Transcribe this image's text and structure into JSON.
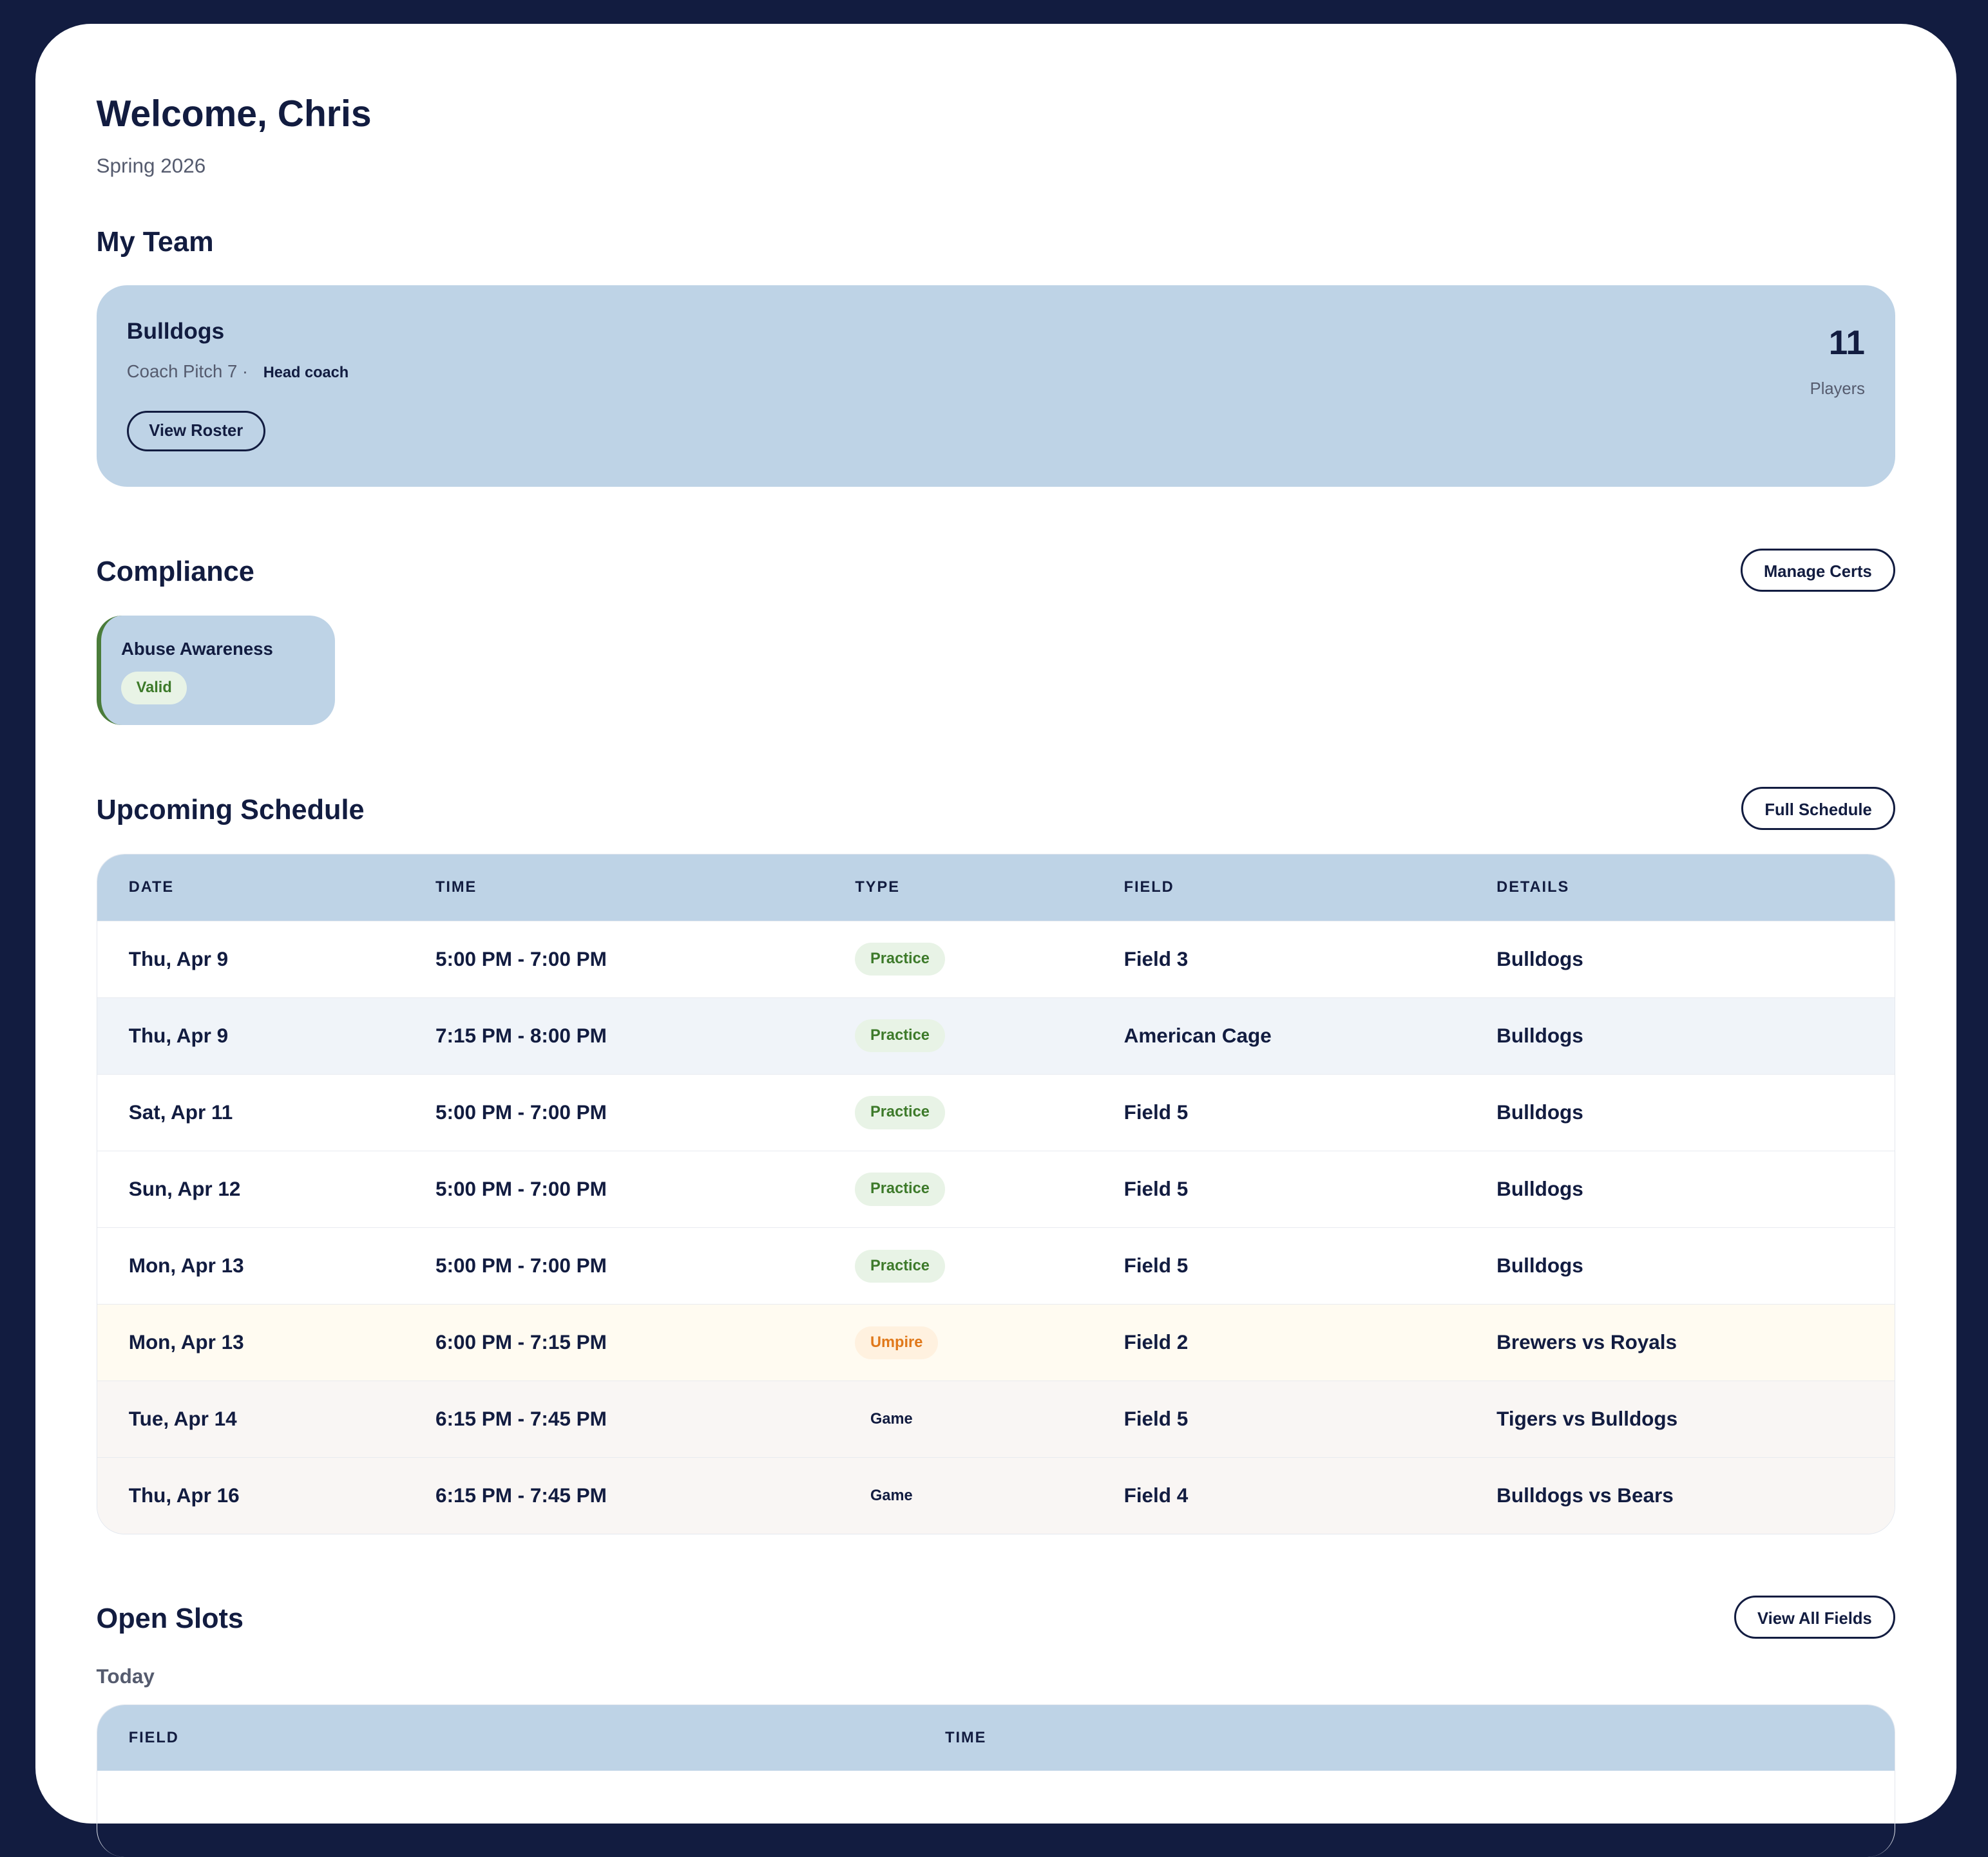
{
  "header": {
    "title": "Welcome, Chris",
    "season": "Spring 2026"
  },
  "team_section": {
    "title": "My Team",
    "team_name": "Bulldogs",
    "division": "Coach Pitch 7 ·",
    "role": "Head coach",
    "view_roster": "View Roster",
    "player_count": "11",
    "player_label": "Players"
  },
  "compliance": {
    "title": "Compliance",
    "manage_button": "Manage Certs",
    "certs": [
      {
        "name": "Abuse Awareness",
        "status": "Valid"
      }
    ]
  },
  "schedule": {
    "title": "Upcoming Schedule",
    "button": "Full Schedule",
    "columns": [
      "DATE",
      "TIME",
      "TYPE",
      "FIELD",
      "DETAILS"
    ],
    "rows": [
      {
        "date": "Thu, Apr 9",
        "time": "5:00 PM - 7:00 PM",
        "type": "Practice",
        "field": "Field 3",
        "details": "Bulldogs"
      },
      {
        "date": "Thu, Apr 9",
        "time": "7:15 PM - 8:00 PM",
        "type": "Practice",
        "field": "American Cage",
        "details": "Bulldogs"
      },
      {
        "date": "Sat, Apr 11",
        "time": "5:00 PM - 7:00 PM",
        "type": "Practice",
        "field": "Field 5",
        "details": "Bulldogs"
      },
      {
        "date": "Sun, Apr 12",
        "time": "5:00 PM - 7:00 PM",
        "type": "Practice",
        "field": "Field 5",
        "details": "Bulldogs"
      },
      {
        "date": "Mon, Apr 13",
        "time": "5:00 PM - 7:00 PM",
        "type": "Practice",
        "field": "Field 5",
        "details": "Bulldogs"
      },
      {
        "date": "Mon, Apr 13",
        "time": "6:00 PM - 7:15 PM",
        "type": "Umpire",
        "field": "Field 2",
        "details": "Brewers vs Royals"
      },
      {
        "date": "Tue, Apr 14",
        "time": "6:15 PM - 7:45 PM",
        "type": "Game",
        "field": "Field 5",
        "details": "Tigers vs Bulldogs"
      },
      {
        "date": "Thu, Apr 16",
        "time": "6:15 PM - 7:45 PM",
        "type": "Game",
        "field": "Field 4",
        "details": "Bulldogs vs Bears"
      }
    ]
  },
  "open_slots": {
    "title": "Open Slots",
    "button": "View All Fields",
    "day_label": "Today",
    "columns": [
      "FIELD",
      "TIME"
    ]
  }
}
